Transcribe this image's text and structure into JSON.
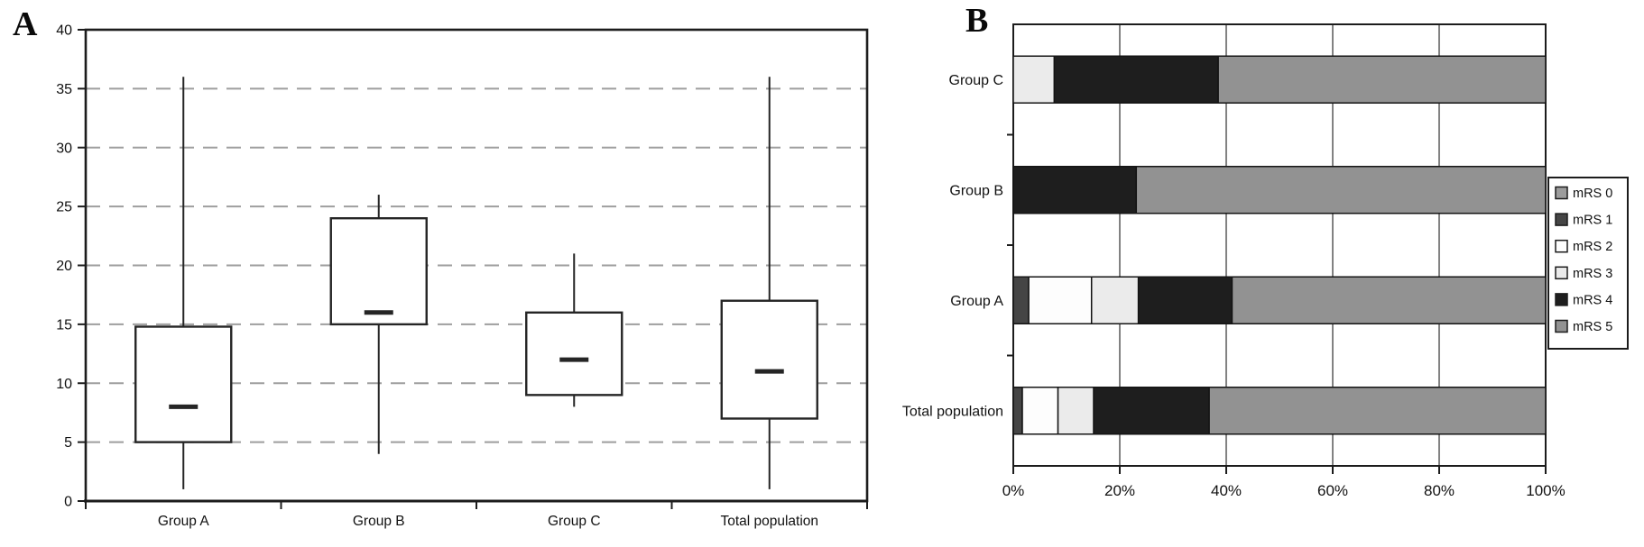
{
  "figure": {
    "panel_a_label": "A",
    "panel_b_label": "B",
    "background": "#ffffff"
  },
  "colors": {
    "axis": "#1c1c1c",
    "text": "#111111",
    "grid_a": "#9e9e9e",
    "grid_b": "#2f2f2f",
    "box_stroke": "#252525",
    "box_fill": "#ffffff",
    "bar_border": "#141414",
    "legend_border": "#1c1c1c",
    "legend_bg": "#ffffff"
  },
  "chart_data": [
    {
      "type": "boxplot",
      "panel": "A",
      "title": "",
      "categories": [
        "Group A",
        "Group B",
        "Group C",
        "Total population"
      ],
      "ylim": [
        0,
        40
      ],
      "yticks": [
        0,
        5,
        10,
        15,
        20,
        25,
        30,
        35,
        40
      ],
      "grid": "horizontal dashed gray lines at every 5 units",
      "series": [
        {
          "name": "Group A",
          "whisker_low": 1,
          "q1": 5,
          "median": 8,
          "q3": 14.8,
          "whisker_high": 36
        },
        {
          "name": "Group B",
          "whisker_low": 4,
          "q1": 15,
          "median": 16,
          "q3": 24,
          "whisker_high": 26
        },
        {
          "name": "Group C",
          "whisker_low": 8,
          "q1": 9,
          "median": 12,
          "q3": 16,
          "whisker_high": 21
        },
        {
          "name": "Total population",
          "whisker_low": 1,
          "q1": 7,
          "median": 11,
          "q3": 17,
          "whisker_high": 36
        }
      ]
    },
    {
      "type": "bar",
      "panel": "B",
      "orientation": "horizontal",
      "stacked": true,
      "title": "",
      "categories": [
        "Group C",
        "Group B",
        "Group A",
        "Total population"
      ],
      "xlim": [
        0,
        100
      ],
      "xtick_labels": [
        "0%",
        "20%",
        "40%",
        "60%",
        "80%",
        "100%"
      ],
      "xtick_values": [
        0,
        20,
        40,
        60,
        80,
        100
      ],
      "grid": "vertical solid lines at every 20%",
      "legend_position": "right",
      "series": [
        {
          "name": "mRS 0",
          "color": "#9c9c9c",
          "values": [
            0,
            0,
            0,
            0
          ]
        },
        {
          "name": "mRS 1",
          "color": "#454545",
          "values": [
            0,
            0,
            2.9,
            1.7
          ]
        },
        {
          "name": "mRS 2",
          "color": "#fdfdfd",
          "values": [
            0,
            0,
            11.8,
            6.7
          ]
        },
        {
          "name": "mRS 3",
          "color": "#ebebeb",
          "values": [
            7.7,
            0,
            8.8,
            6.7
          ]
        },
        {
          "name": "mRS 4",
          "color": "#1e1e1e",
          "values": [
            30.8,
            23.1,
            17.6,
            21.7
          ]
        },
        {
          "name": "mRS 5",
          "color": "#929292",
          "values": [
            61.5,
            76.9,
            58.8,
            63.3
          ]
        }
      ]
    }
  ]
}
